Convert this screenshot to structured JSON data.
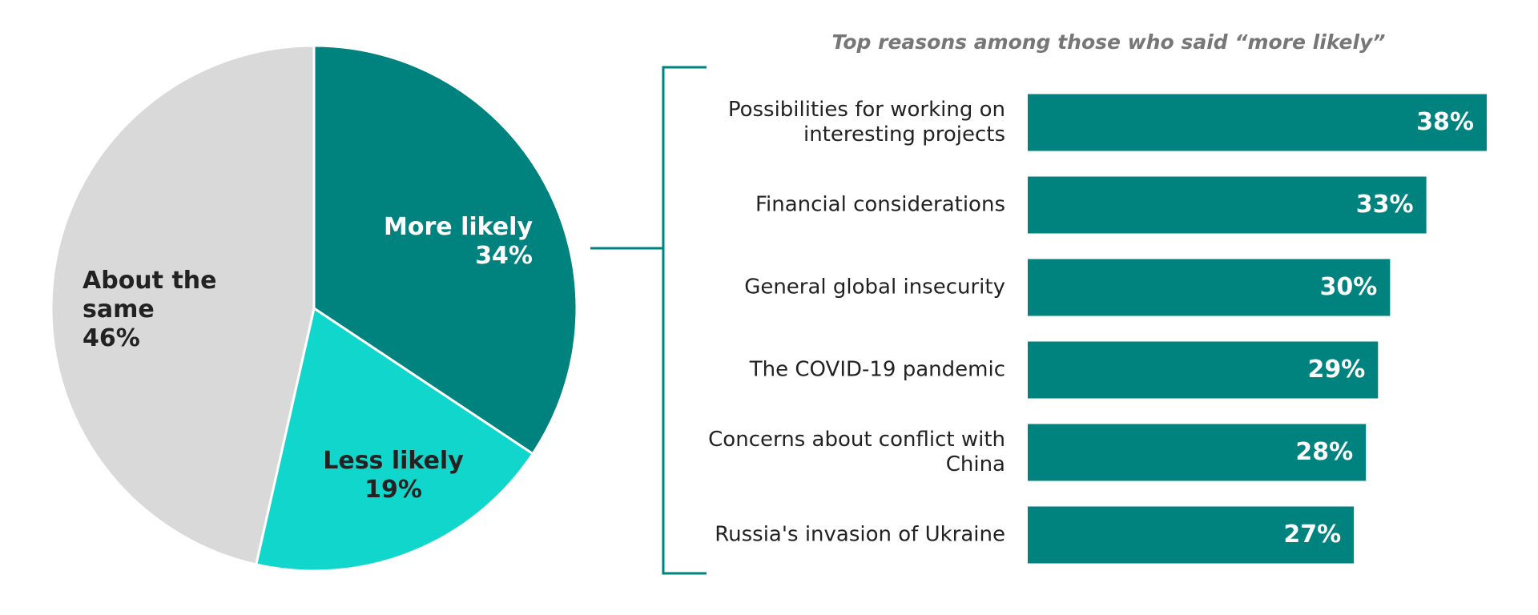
{
  "chart_data": [
    {
      "type": "pie",
      "labels": [
        "More likely",
        "Less likely",
        "About the same"
      ],
      "values": [
        34,
        19,
        46
      ],
      "value_labels": [
        "34%",
        "19%",
        "46%"
      ],
      "colors": [
        "#00827f",
        "#10d6cc",
        "#d9d9d9"
      ]
    },
    {
      "type": "hbar",
      "subtitle": "Top reasons among those who said “more likely”",
      "categories": [
        "Possibilities for working on interesting projects",
        "Financial considerations",
        "General global insecurity",
        "The COVID-19 pandemic",
        "Concerns about conflict with China",
        "Russia's invasion of Ukraine"
      ],
      "values": [
        38,
        33,
        30,
        29,
        28,
        27
      ],
      "value_labels": [
        "38%",
        "33%",
        "30%",
        "29%",
        "28%",
        "27%"
      ],
      "color": "#00827f"
    }
  ]
}
